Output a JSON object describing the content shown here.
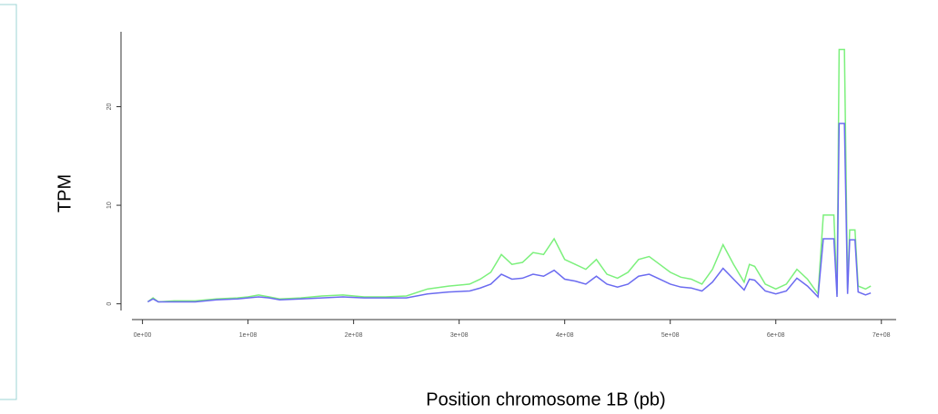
{
  "chart_data": {
    "type": "line",
    "xlabel": "Position chromosome 1B (pb)",
    "ylabel": "TPM",
    "x": [
      5000000,
      10000000,
      15000000,
      30000000,
      50000000,
      70000000,
      90000000,
      100000000,
      110000000,
      120000000,
      130000000,
      150000000,
      170000000,
      190000000,
      210000000,
      230000000,
      250000000,
      270000000,
      290000000,
      310000000,
      320000000,
      330000000,
      340000000,
      350000000,
      360000000,
      370000000,
      380000000,
      390000000,
      400000000,
      410000000,
      420000000,
      430000000,
      440000000,
      450000000,
      460000000,
      470000000,
      480000000,
      490000000,
      500000000,
      510000000,
      520000000,
      530000000,
      540000000,
      550000000,
      560000000,
      570000000,
      575000000,
      580000000,
      590000000,
      600000000,
      610000000,
      620000000,
      630000000,
      640000000,
      645000000,
      655000000,
      658000000,
      660000000,
      665000000,
      668000000,
      670000000,
      675000000,
      678000000,
      685000000,
      690000000
    ],
    "series": [
      {
        "color": "#7cf07c",
        "values": [
          0.2,
          0.6,
          0.2,
          0.3,
          0.3,
          0.5,
          0.6,
          0.7,
          0.9,
          0.7,
          0.5,
          0.6,
          0.8,
          0.9,
          0.7,
          0.7,
          0.8,
          1.5,
          1.8,
          2.0,
          2.5,
          3.2,
          5.0,
          4.0,
          4.2,
          5.2,
          5.0,
          6.6,
          4.5,
          4.0,
          3.5,
          4.5,
          3.0,
          2.6,
          3.2,
          4.5,
          4.8,
          4.0,
          3.2,
          2.7,
          2.5,
          2.0,
          3.5,
          6.0,
          4.0,
          2.2,
          4.0,
          3.8,
          2.0,
          1.5,
          2.0,
          3.5,
          2.5,
          1.0,
          9.0,
          9.0,
          1.0,
          25.8,
          25.8,
          1.5,
          7.5,
          7.5,
          1.8,
          1.5,
          1.8
        ]
      },
      {
        "color": "#6b6bf0",
        "values": [
          0.2,
          0.5,
          0.2,
          0.2,
          0.2,
          0.4,
          0.5,
          0.6,
          0.7,
          0.6,
          0.4,
          0.5,
          0.6,
          0.7,
          0.6,
          0.6,
          0.6,
          1.0,
          1.2,
          1.3,
          1.6,
          2.0,
          3.0,
          2.5,
          2.6,
          3.0,
          2.8,
          3.4,
          2.5,
          2.3,
          2.0,
          2.8,
          2.0,
          1.7,
          2.0,
          2.8,
          3.0,
          2.5,
          2.0,
          1.7,
          1.6,
          1.3,
          2.2,
          3.6,
          2.5,
          1.4,
          2.5,
          2.4,
          1.3,
          1.0,
          1.3,
          2.6,
          1.8,
          0.7,
          6.6,
          6.6,
          0.7,
          18.3,
          18.3,
          1.0,
          6.5,
          6.5,
          1.2,
          0.9,
          1.1
        ]
      }
    ],
    "xlim": [
      -10000000,
      714000000
    ],
    "xticks": [
      {
        "value": 0,
        "label": "0e+00"
      },
      {
        "value": 100000000,
        "label": "1e+08"
      },
      {
        "value": 200000000,
        "label": "2e+08"
      },
      {
        "value": 300000000,
        "label": "3e+08"
      },
      {
        "value": 400000000,
        "label": "4e+08"
      },
      {
        "value": 500000000,
        "label": "5e+08"
      },
      {
        "value": 600000000,
        "label": "6e+08"
      },
      {
        "value": 700000000,
        "label": "7e+08"
      }
    ],
    "ylim": [
      -1.6,
      27.6
    ],
    "yticks": [
      0,
      10,
      20
    ]
  }
}
